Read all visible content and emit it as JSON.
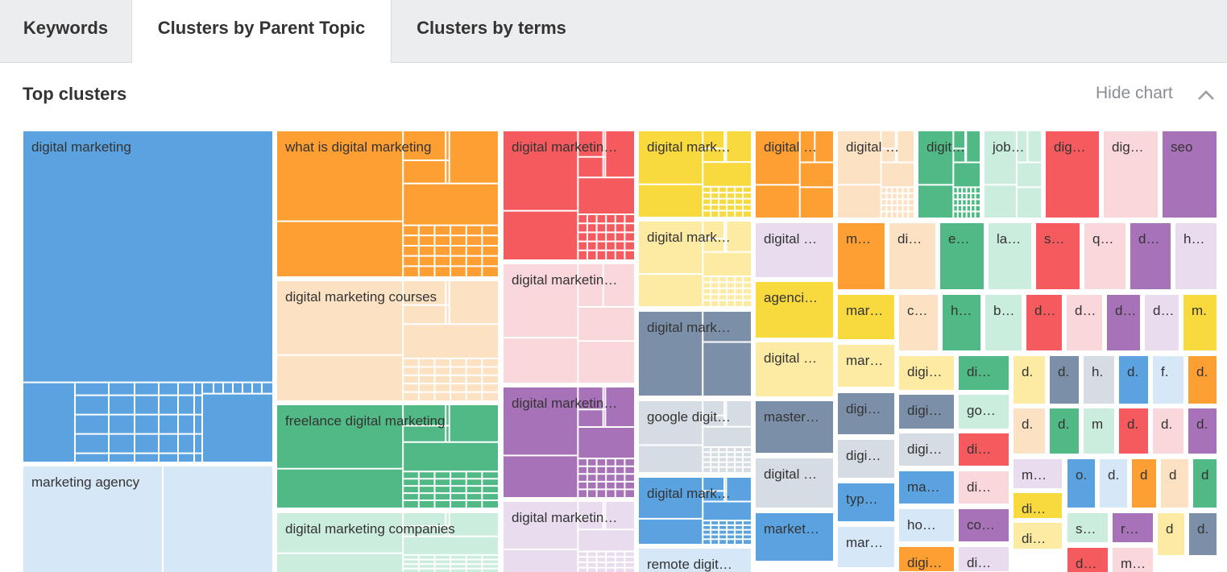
{
  "tabs": [
    {
      "label": "Keywords",
      "active": false
    },
    {
      "label": "Clusters by Parent Topic",
      "active": true
    },
    {
      "label": "Clusters by terms",
      "active": false
    }
  ],
  "section": {
    "title": "Top clusters",
    "hide_chart_label": "Hide chart",
    "toggle_icon": "chevron-up-icon"
  },
  "palette": {
    "blue": "#5ba3e0",
    "light_blue": "#d6e7f8",
    "orange": "#fd9f32",
    "peach": "#fce2c3",
    "green": "#51b985",
    "mint": "#cbeddd",
    "red": "#f45a5e",
    "pink": "#f9d7da",
    "purple": "#a872b8",
    "lavender": "#e8dcee",
    "yellow": "#f8d93e",
    "light_yellow": "#fdeba4",
    "slate": "#7b90a8",
    "light_gray": "#d5dce3"
  },
  "chart_data": {
    "type": "treemap",
    "clusters": [
      {
        "label": "digital marketing",
        "color": "blue"
      },
      {
        "label": "marketing agency",
        "color": "light_blue"
      },
      {
        "label": "what is digital marketing",
        "color": "orange"
      },
      {
        "label": "digital marketing courses",
        "color": "peach"
      },
      {
        "label": "freelance digital marketing",
        "color": "green"
      },
      {
        "label": "digital marketing companies",
        "color": "mint"
      },
      {
        "label": "digital marketin…",
        "color": "red"
      },
      {
        "label": "digital marketin…",
        "color": "pink"
      },
      {
        "label": "digital marketin…",
        "color": "purple"
      },
      {
        "label": "digital marketin…",
        "color": "lavender"
      },
      {
        "label": "digital mark…",
        "color": "yellow"
      },
      {
        "label": "digital mark…",
        "color": "light_yellow"
      },
      {
        "label": "digital mark…",
        "color": "slate"
      },
      {
        "label": "google digit…",
        "color": "light_gray"
      },
      {
        "label": "digital mark…",
        "color": "blue"
      },
      {
        "label": "remote digit…",
        "color": "light_blue"
      },
      {
        "label": "digital …",
        "color": "orange"
      },
      {
        "label": "digital …",
        "color": "lavender"
      },
      {
        "label": "agenci…",
        "color": "yellow"
      },
      {
        "label": "digital …",
        "color": "light_yellow"
      },
      {
        "label": "master…",
        "color": "slate"
      },
      {
        "label": "digital …",
        "color": "light_gray"
      },
      {
        "label": "market…",
        "color": "blue"
      },
      {
        "label": "digital …",
        "color": "peach"
      },
      {
        "label": "digit…",
        "color": "green"
      },
      {
        "label": "job…",
        "color": "mint"
      },
      {
        "label": "dig…",
        "color": "red"
      },
      {
        "label": "dig…",
        "color": "pink"
      },
      {
        "label": "seo",
        "color": "purple"
      },
      {
        "label": "m…",
        "color": "orange"
      },
      {
        "label": "di…",
        "color": "peach"
      },
      {
        "label": "e…",
        "color": "green"
      },
      {
        "label": "la…",
        "color": "mint"
      },
      {
        "label": "s…",
        "color": "red"
      },
      {
        "label": "q…",
        "color": "pink"
      },
      {
        "label": "d…",
        "color": "purple"
      },
      {
        "label": "h…",
        "color": "lavender"
      },
      {
        "label": "mar…",
        "color": "yellow"
      },
      {
        "label": "c…",
        "color": "peach"
      },
      {
        "label": "h…",
        "color": "green"
      },
      {
        "label": "b…",
        "color": "mint"
      },
      {
        "label": "d…",
        "color": "red"
      },
      {
        "label": "d…",
        "color": "pink"
      },
      {
        "label": "d…",
        "color": "purple"
      },
      {
        "label": "d…",
        "color": "lavender"
      },
      {
        "label": "m.",
        "color": "yellow"
      },
      {
        "label": "mar…",
        "color": "light_yellow"
      },
      {
        "label": "digi…",
        "color": "light_yellow"
      },
      {
        "label": "di…",
        "color": "green"
      },
      {
        "label": "d.",
        "color": "light_yellow"
      },
      {
        "label": "d.",
        "color": "slate"
      },
      {
        "label": "h.",
        "color": "light_gray"
      },
      {
        "label": "d.",
        "color": "blue"
      },
      {
        "label": "f.",
        "color": "light_blue"
      },
      {
        "label": "d.",
        "color": "orange"
      },
      {
        "label": "digi…",
        "color": "slate"
      },
      {
        "label": "digi…",
        "color": "slate"
      },
      {
        "label": "go…",
        "color": "mint"
      },
      {
        "label": "d.",
        "color": "peach"
      },
      {
        "label": "d.",
        "color": "green"
      },
      {
        "label": "m",
        "color": "mint"
      },
      {
        "label": "d.",
        "color": "red"
      },
      {
        "label": "d.",
        "color": "pink"
      },
      {
        "label": "d.",
        "color": "purple"
      },
      {
        "label": "digi…",
        "color": "light_gray"
      },
      {
        "label": "digi…",
        "color": "light_gray"
      },
      {
        "label": "di…",
        "color": "red"
      },
      {
        "label": "m…",
        "color": "lavender"
      },
      {
        "label": "o.",
        "color": "blue"
      },
      {
        "label": "d.",
        "color": "light_blue"
      },
      {
        "label": "d",
        "color": "orange"
      },
      {
        "label": "d",
        "color": "peach"
      },
      {
        "label": "d",
        "color": "green"
      },
      {
        "label": "typ…",
        "color": "blue"
      },
      {
        "label": "ma…",
        "color": "blue"
      },
      {
        "label": "di…",
        "color": "pink"
      },
      {
        "label": "di…",
        "color": "yellow"
      },
      {
        "label": "mar…",
        "color": "light_blue"
      },
      {
        "label": "ho…",
        "color": "light_blue"
      },
      {
        "label": "co…",
        "color": "purple"
      },
      {
        "label": "di…",
        "color": "light_yellow"
      },
      {
        "label": "s…",
        "color": "mint"
      },
      {
        "label": "r…",
        "color": "purple"
      },
      {
        "label": "d",
        "color": "light_yellow"
      },
      {
        "label": "d.",
        "color": "slate"
      },
      {
        "label": "digi…",
        "color": "orange"
      },
      {
        "label": "di…",
        "color": "lavender"
      },
      {
        "label": "d…",
        "color": "red"
      },
      {
        "label": "m…",
        "color": "pink"
      }
    ]
  }
}
